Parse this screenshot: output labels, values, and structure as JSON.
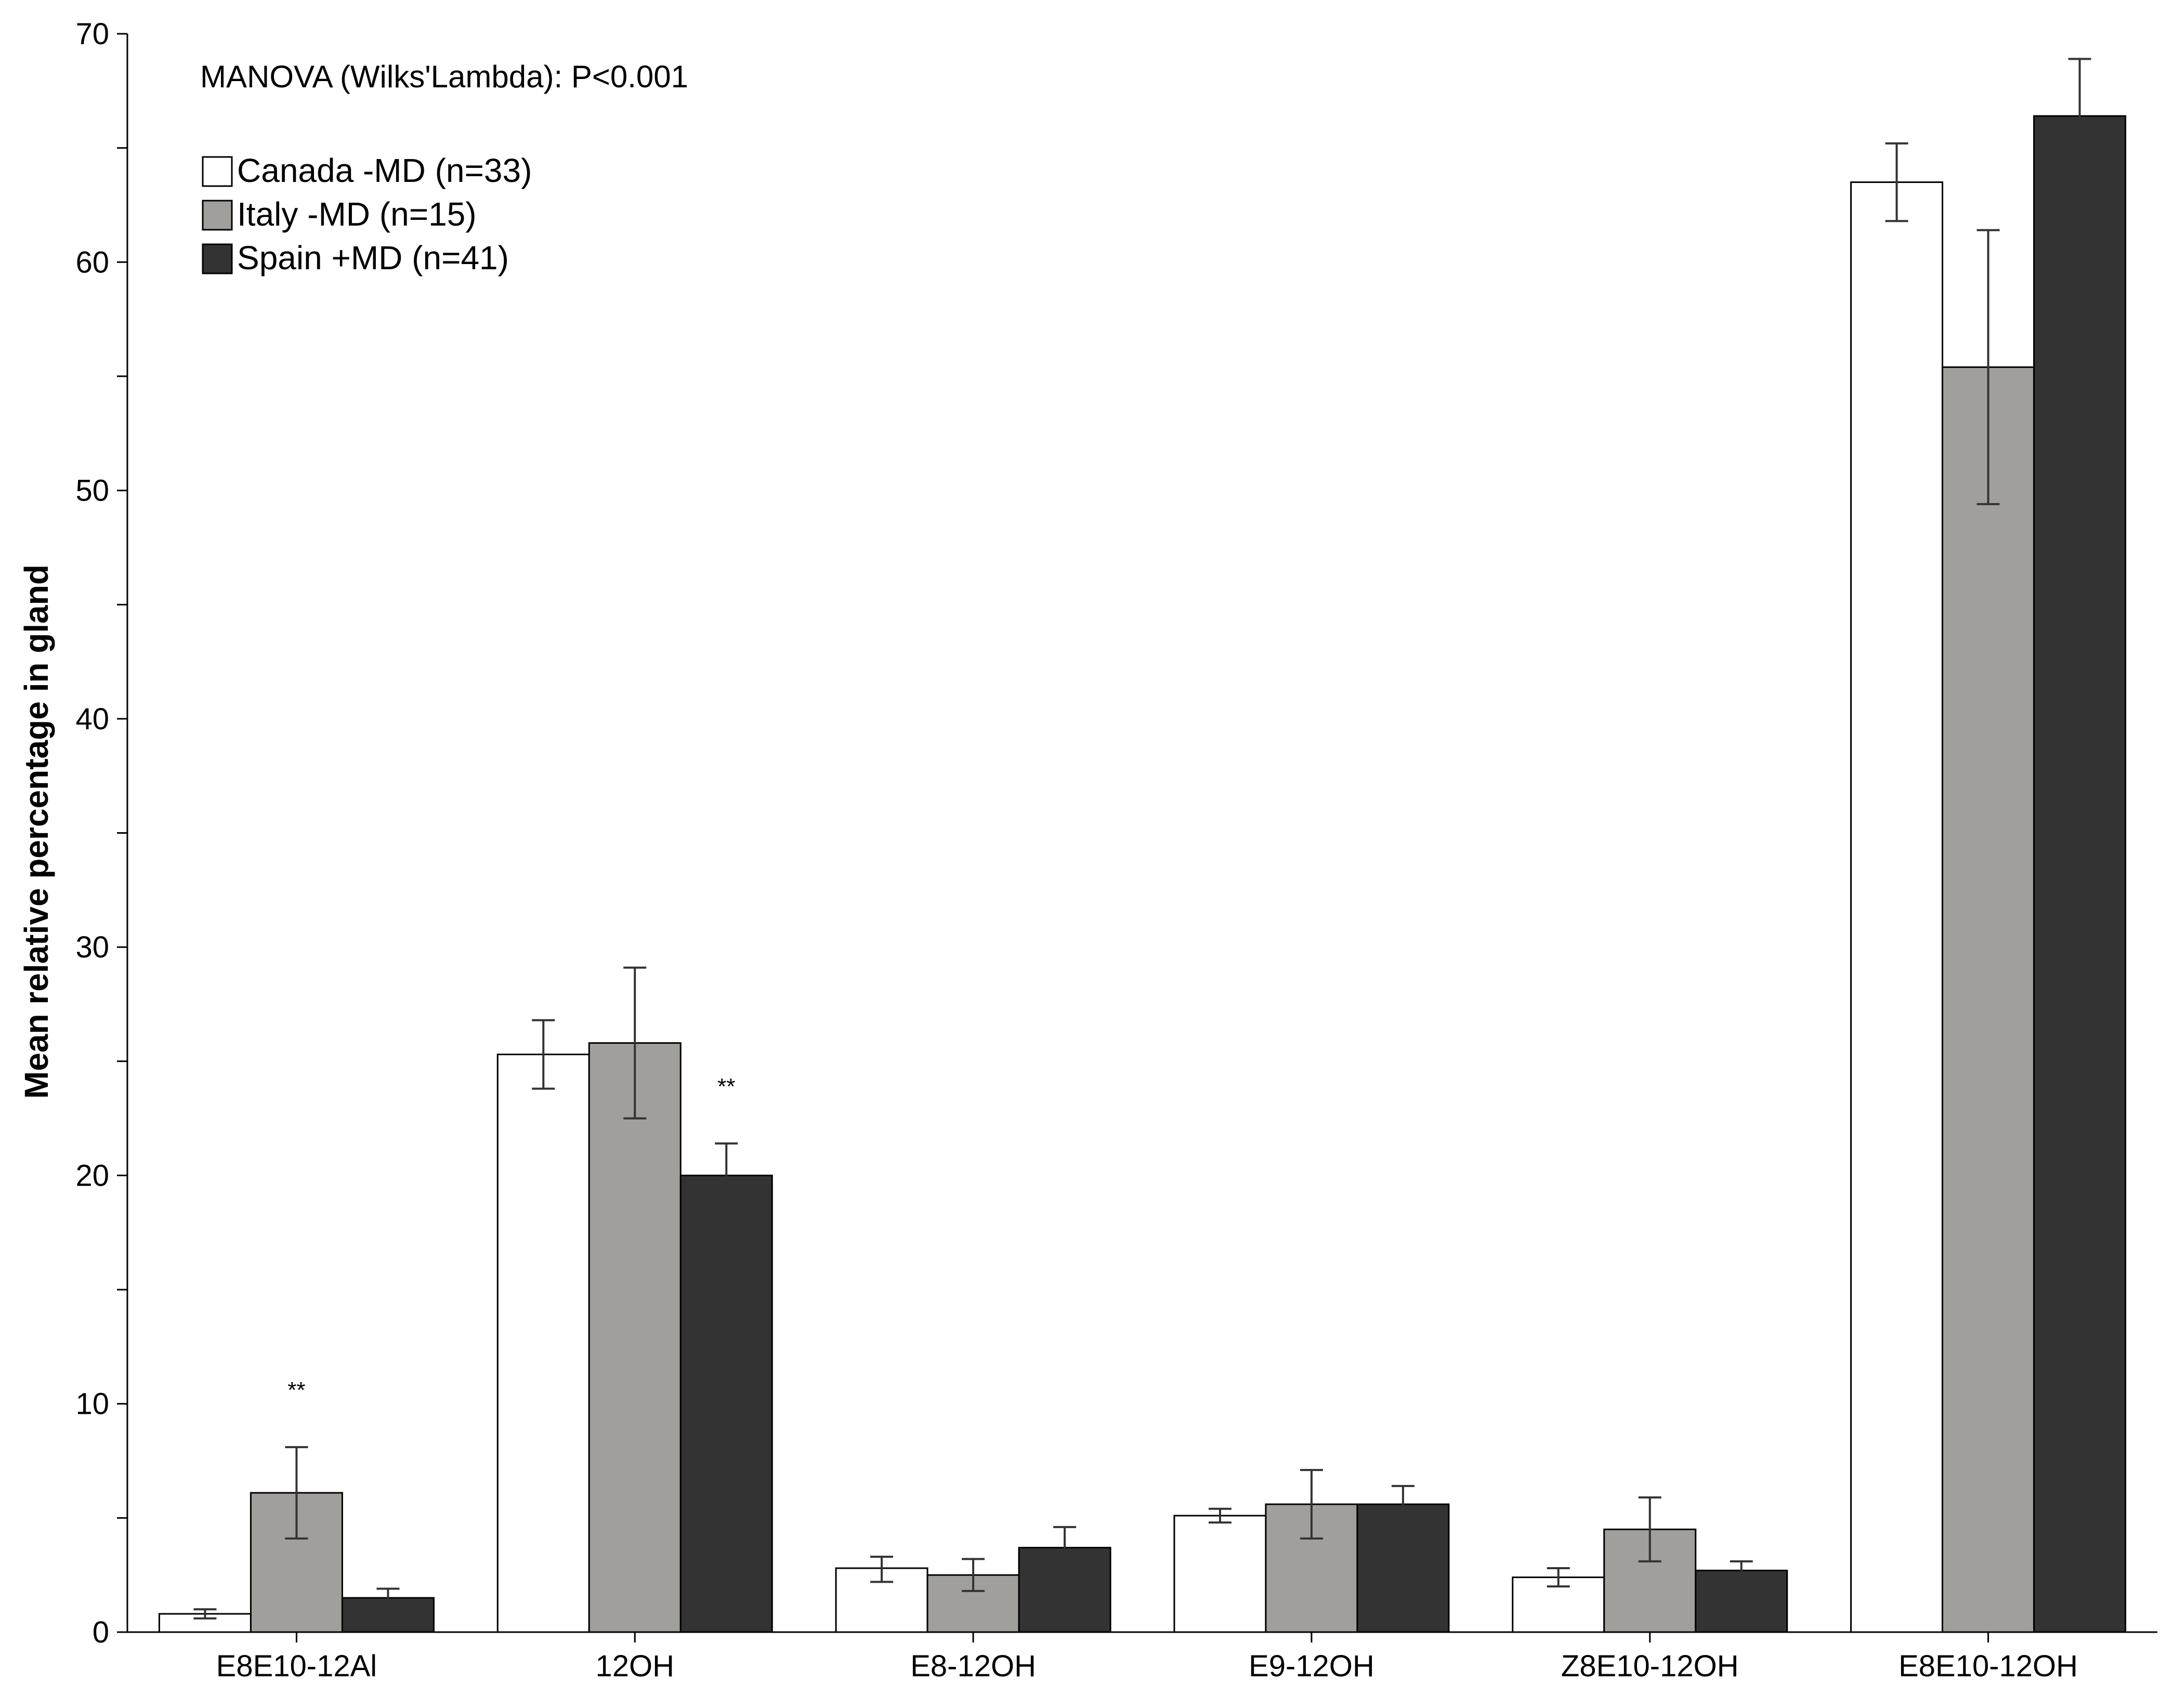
{
  "chart_data": {
    "type": "bar",
    "annotation": "MANOVA (Wilks'Lambda): P<0.001",
    "xlabel": "",
    "ylabel": "Mean relative percentage in gland",
    "ylim": [
      0,
      70
    ],
    "y_ticks": [
      0,
      10,
      20,
      30,
      40,
      50,
      60,
      70
    ],
    "y_tick_labels": [
      "0",
      "10",
      "20",
      "30",
      "40",
      "50",
      "60",
      "70"
    ],
    "y_minor_step": 5,
    "grid": false,
    "legend_position": "top-left",
    "categories": [
      "E8E10-12Al",
      "12OH",
      "E8-12OH",
      "E9-12OH",
      "Z8E10-12OH",
      "E8E10-12OH"
    ],
    "series": [
      {
        "name": "Canada -MD (n=33)",
        "color": "#ffffff",
        "values": [
          0.8,
          25.3,
          2.8,
          5.1,
          2.4,
          63.5
        ],
        "error_low": [
          0.6,
          23.8,
          2.2,
          4.8,
          2.0,
          61.8
        ],
        "error_high": [
          1.0,
          26.8,
          3.3,
          5.4,
          2.8,
          65.2
        ]
      },
      {
        "name": "Italy -MD (n=15)",
        "color": "#a09f9b",
        "values": [
          6.1,
          25.8,
          2.5,
          5.6,
          4.5,
          55.4
        ],
        "error_low": [
          4.1,
          22.5,
          1.8,
          4.1,
          3.1,
          49.4
        ],
        "error_high": [
          8.1,
          29.1,
          3.2,
          7.1,
          5.9,
          61.4
        ]
      },
      {
        "name": "Spain +MD (n=41)",
        "color": "#333333",
        "values": [
          1.5,
          20.0,
          3.7,
          5.6,
          2.7,
          66.4
        ],
        "error_low": [
          1.2,
          18.6,
          2.9,
          4.9,
          2.3,
          63.9
        ],
        "error_high": [
          1.9,
          21.4,
          4.6,
          6.4,
          3.1,
          68.9
        ]
      }
    ],
    "significance_marks": [
      {
        "category_index": 0,
        "series_index": 1,
        "text": "**"
      },
      {
        "category_index": 1,
        "series_index": 2,
        "text": "**"
      }
    ]
  }
}
